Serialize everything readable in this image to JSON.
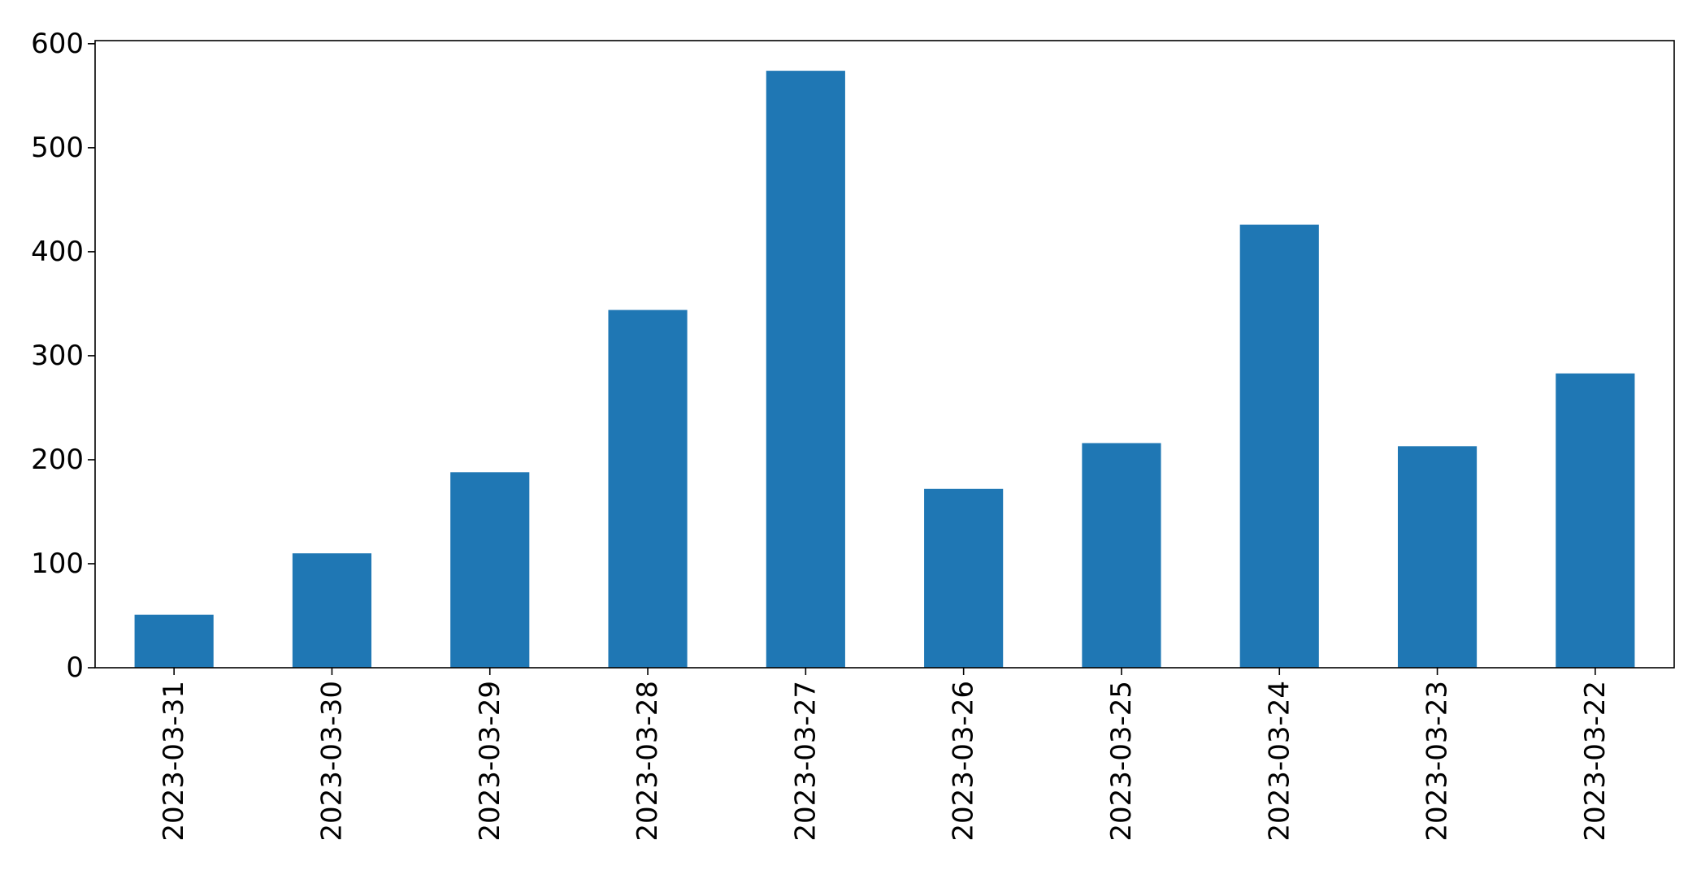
{
  "chart_data": {
    "type": "bar",
    "title": "",
    "xlabel": "",
    "ylabel": "",
    "categories": [
      "2023-03-31",
      "2023-03-30",
      "2023-03-29",
      "2023-03-28",
      "2023-03-27",
      "2023-03-26",
      "2023-03-25",
      "2023-03-24",
      "2023-03-23",
      "2023-03-22"
    ],
    "values": [
      51,
      110,
      188,
      344,
      574,
      172,
      216,
      426,
      213,
      283
    ],
    "ylim": [
      0,
      603
    ],
    "yticks": [
      0,
      100,
      200,
      300,
      400,
      500,
      600
    ],
    "ytick_labels": [
      "0",
      "100",
      "200",
      "300",
      "400",
      "500",
      "600"
    ],
    "bar_color": "#1f77b4",
    "grid": false,
    "legend": "none"
  }
}
